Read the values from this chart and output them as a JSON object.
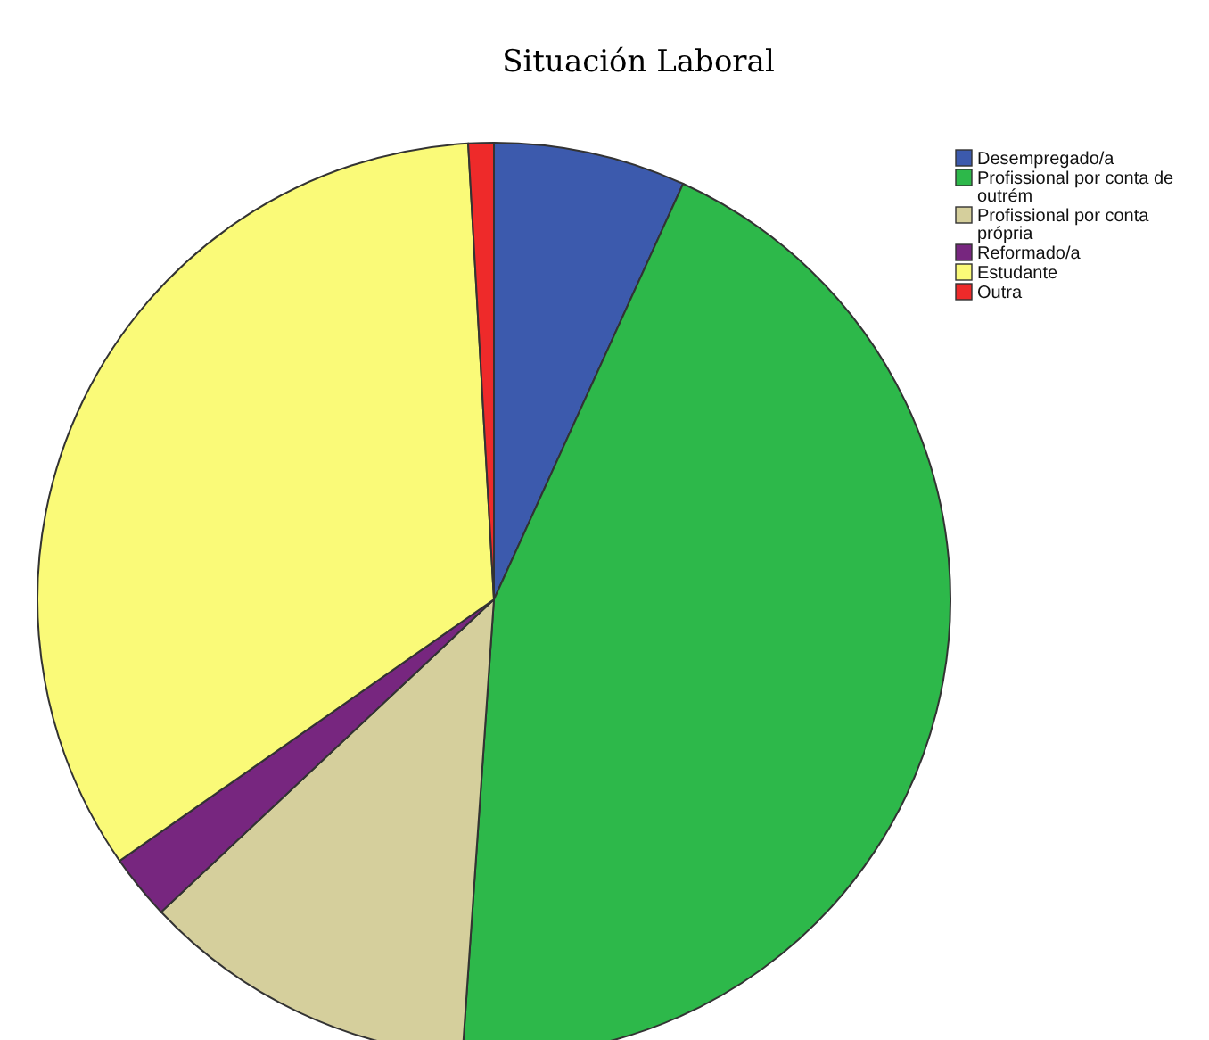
{
  "chart_data": {
    "type": "pie",
    "title": "Situación Laboral",
    "categories": [
      "Desempregado/a",
      "Profissional por conta de outrém",
      "Profissional por conta própria",
      "Reformado/a",
      "Estudante",
      "Outra"
    ],
    "values": [
      6.8,
      44.3,
      11.9,
      2.3,
      33.8,
      0.9
    ],
    "colors": [
      "#3c5aad",
      "#2db84a",
      "#d5cf9c",
      "#77267f",
      "#fafa78",
      "#ee2a2a"
    ],
    "legend": "top right"
  }
}
